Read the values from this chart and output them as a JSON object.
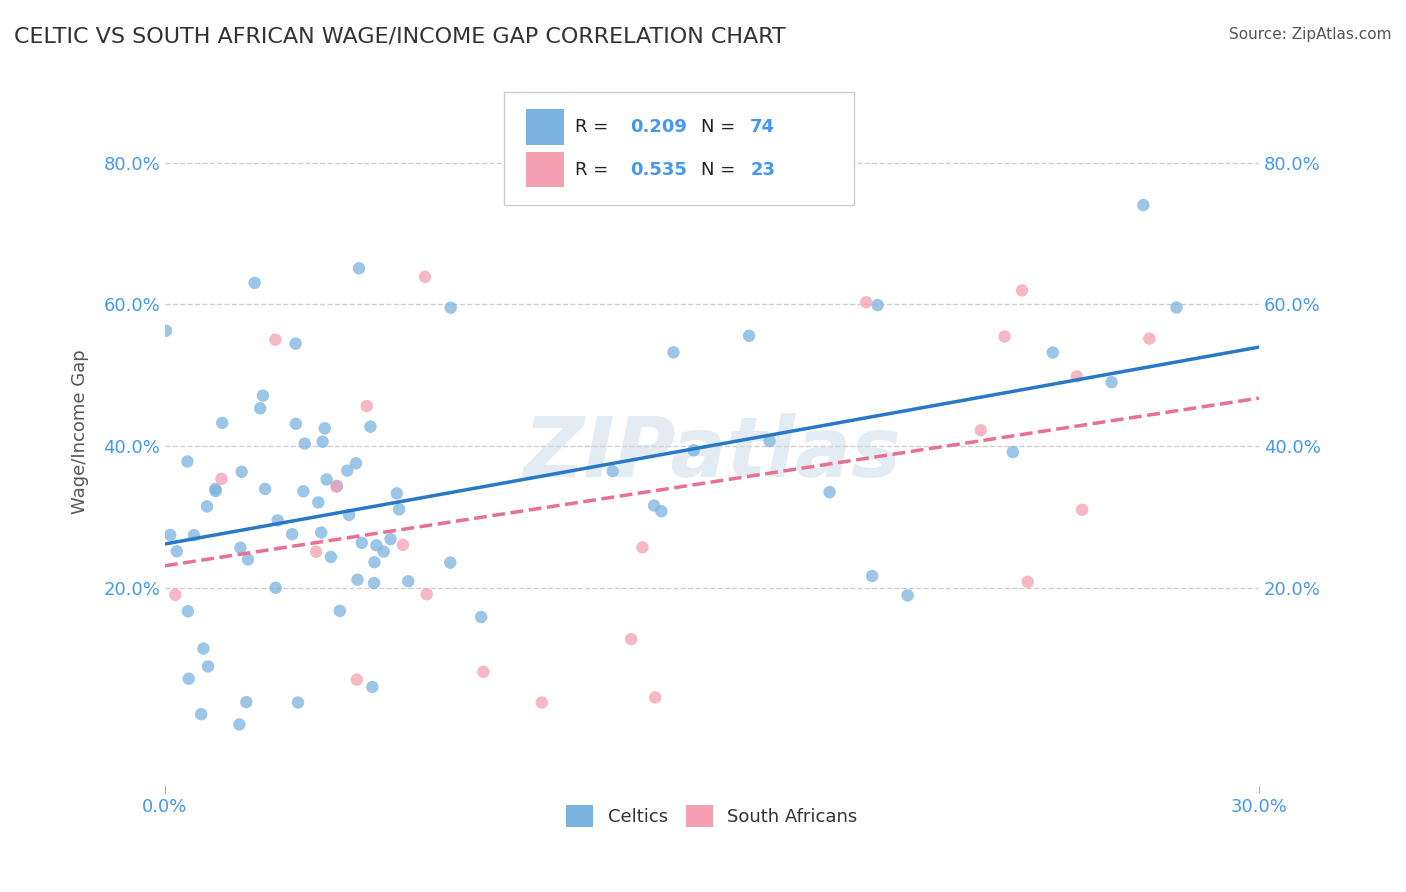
{
  "title": "CELTIC VS SOUTH AFRICAN WAGE/INCOME GAP CORRELATION CHART",
  "source": "Source: ZipAtlas.com",
  "ylabel": "Wage/Income Gap",
  "xlim": [
    0.0,
    0.3
  ],
  "ylim": [
    -0.08,
    0.92
  ],
  "xtick_labels": [
    "0.0%",
    "30.0%"
  ],
  "ytick_values": [
    0.2,
    0.4,
    0.6,
    0.8
  ],
  "ytick_labels": [
    "20.0%",
    "40.0%",
    "60.0%",
    "80.0%"
  ],
  "R_celtics": 0.209,
  "N_celtics": 74,
  "R_sa": 0.535,
  "N_sa": 23,
  "celtics_color": "#7ab3e0",
  "sa_color": "#f4a0b0",
  "celtics_line_color": "#2878c8",
  "sa_line_color": "#e87090",
  "legend_label_celtics": "Celtics",
  "legend_label_sa": "South Africans",
  "watermark": "ZIPatlas",
  "background_color": "#ffffff",
  "grid_color": "#d0d0d0",
  "text_color": "#4499ee"
}
